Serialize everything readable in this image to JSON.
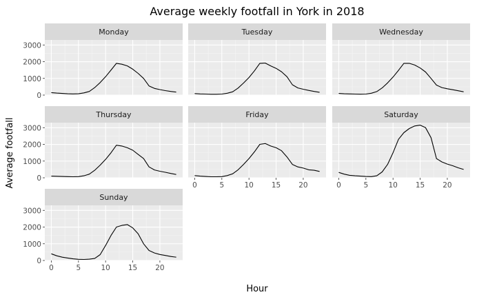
{
  "chart_data": {
    "type": "line",
    "title": "Average weekly footfall in York in 2018",
    "xlabel": "Hour",
    "ylabel": "Average footfall",
    "xlim": [
      -1.2,
      24.2
    ],
    "ylim": [
      0,
      3300
    ],
    "x_ticks": [
      0,
      5,
      10,
      15,
      20
    ],
    "y_ticks": [
      0,
      1000,
      2000,
      3000
    ],
    "grid": true,
    "legend": "none",
    "x": [
      0,
      1,
      2,
      3,
      4,
      5,
      6,
      7,
      8,
      9,
      10,
      11,
      12,
      13,
      14,
      15,
      16,
      17,
      18,
      19,
      20,
      21,
      22,
      23
    ],
    "panels": [
      {
        "name": "Monday",
        "values": [
          150,
          120,
          100,
          80,
          70,
          80,
          130,
          220,
          450,
          750,
          1100,
          1500,
          1900,
          1850,
          1750,
          1550,
          1300,
          1000,
          550,
          400,
          330,
          270,
          220,
          180
        ]
      },
      {
        "name": "Tuesday",
        "values": [
          90,
          70,
          60,
          50,
          50,
          60,
          110,
          200,
          420,
          720,
          1050,
          1450,
          1900,
          1920,
          1750,
          1600,
          1400,
          1100,
          620,
          430,
          350,
          280,
          220,
          170
        ]
      },
      {
        "name": "Wednesday",
        "values": [
          100,
          80,
          70,
          60,
          55,
          60,
          110,
          210,
          430,
          730,
          1080,
          1480,
          1900,
          1900,
          1800,
          1620,
          1380,
          1000,
          600,
          450,
          380,
          320,
          260,
          200
        ]
      },
      {
        "name": "Thursday",
        "values": [
          100,
          90,
          80,
          70,
          60,
          70,
          120,
          220,
          450,
          760,
          1100,
          1500,
          1950,
          1900,
          1800,
          1650,
          1400,
          1150,
          650,
          470,
          390,
          330,
          260,
          200
        ]
      },
      {
        "name": "Friday",
        "values": [
          130,
          100,
          80,
          60,
          60,
          70,
          130,
          240,
          480,
          800,
          1150,
          1550,
          2000,
          2050,
          1900,
          1800,
          1620,
          1250,
          800,
          650,
          580,
          480,
          450,
          380
        ]
      },
      {
        "name": "Saturday",
        "values": [
          320,
          220,
          150,
          120,
          100,
          80,
          70,
          120,
          350,
          800,
          1500,
          2300,
          2700,
          2950,
          3100,
          3150,
          3000,
          2400,
          1150,
          950,
          820,
          720,
          600,
          500
        ]
      },
      {
        "name": "Sunday",
        "values": [
          400,
          280,
          200,
          150,
          100,
          70,
          60,
          80,
          120,
          350,
          900,
          1500,
          2000,
          2100,
          2150,
          1950,
          1600,
          1000,
          600,
          450,
          360,
          300,
          240,
          200
        ]
      }
    ]
  }
}
